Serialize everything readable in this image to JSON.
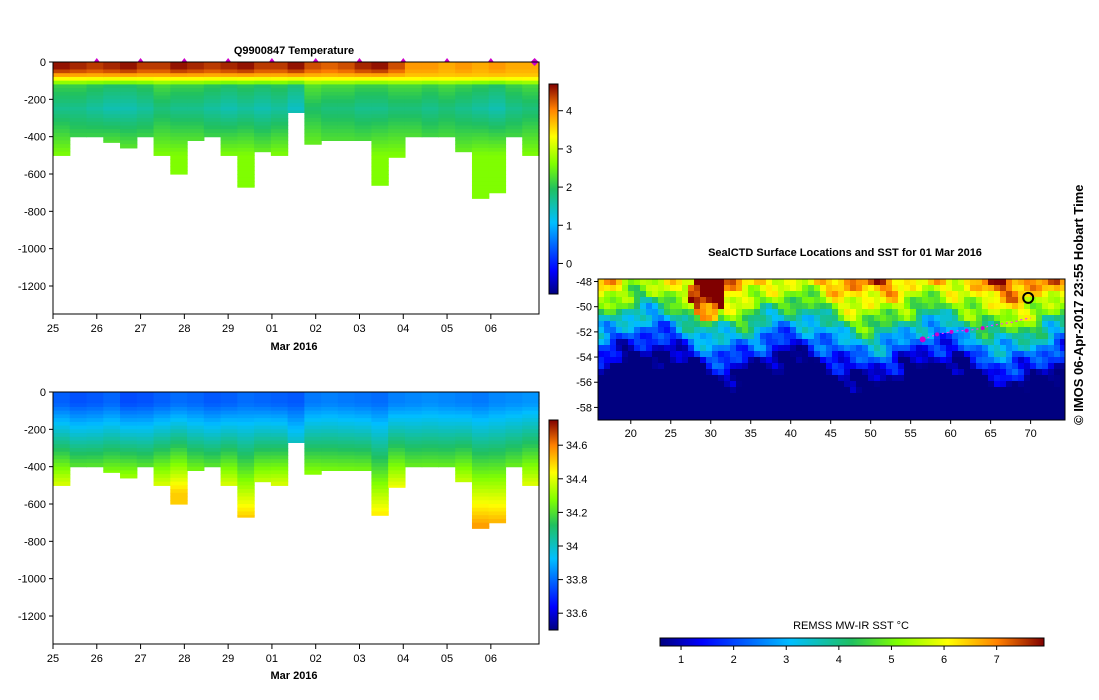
{
  "colors": {
    "profile_mark": "#cc00cc",
    "track": "#ff33ff",
    "ice": "#000000"
  },
  "chart_data": [
    {
      "type": "heatmap",
      "title": "Q9900847  Temperature",
      "xlabel": "Mar 2016",
      "x_ticks": [
        "25",
        "26",
        "27",
        "28",
        "29",
        "01",
        "02",
        "03",
        "04",
        "05",
        "06"
      ],
      "y_ticks": [
        "0",
        "-200",
        "-400",
        "-600",
        "-800",
        "-1000",
        "-1200"
      ],
      "ylim": [
        -1350,
        0
      ],
      "colorbar_ticks": [
        "4",
        "3",
        "2",
        "1",
        "0"
      ],
      "colorbar_range": [
        -0.8,
        4.7
      ],
      "profiles": {
        "max_depth_m": [
          500,
          400,
          400,
          430,
          460,
          400,
          500,
          600,
          420,
          400,
          500,
          670,
          480,
          500,
          270,
          440,
          420,
          420,
          420,
          660,
          510,
          400,
          400,
          400,
          480,
          730,
          700,
          400,
          500
        ],
        "surface_temp": [
          4.6,
          4.5,
          4.4,
          4.5,
          4.6,
          4.4,
          4.4,
          4.6,
          4.5,
          4.4,
          4.5,
          4.6,
          4.4,
          4.4,
          4.6,
          4.3,
          4.2,
          4.3,
          4.5,
          4.6,
          4.3,
          3.9,
          3.9,
          3.8,
          3.9,
          3.8,
          3.9,
          3.8,
          3.8
        ],
        "min_layer_temp": [
          1.7,
          1.7,
          1.6,
          1.5,
          1.5,
          1.6,
          1.8,
          1.7,
          1.7,
          1.6,
          1.5,
          1.6,
          1.5,
          1.6,
          1.4,
          1.9,
          1.8,
          1.8,
          1.7,
          1.7,
          1.8,
          1.8,
          1.7,
          1.8,
          1.7,
          1.6,
          1.5,
          1.7,
          1.8
        ],
        "deep_temp": [
          2.6,
          2.4,
          2.5,
          2.6,
          2.5,
          2.5,
          2.6,
          2.6,
          2.6,
          2.5,
          2.6,
          2.6,
          2.5,
          2.6,
          2.5,
          2.6,
          2.5,
          2.5,
          2.5,
          2.6,
          2.6,
          2.6,
          2.5,
          2.5,
          2.5,
          2.6,
          2.6,
          2.5,
          2.6
        ]
      },
      "surface_marker_days": [
        26,
        27,
        28,
        29,
        30,
        31,
        32,
        33,
        34,
        35,
        36
      ]
    },
    {
      "type": "heatmap",
      "title": "",
      "xlabel": "Mar 2016",
      "x_ticks": [
        "25",
        "26",
        "27",
        "28",
        "29",
        "01",
        "02",
        "03",
        "04",
        "05",
        "06"
      ],
      "y_ticks": [
        "0",
        "-200",
        "-400",
        "-600",
        "-800",
        "-1000",
        "-1200"
      ],
      "ylim": [
        -1350,
        0
      ],
      "colorbar_ticks": [
        "34.6",
        "34.4",
        "34.2",
        "34",
        "33.8",
        "33.6"
      ],
      "colorbar_range": [
        33.5,
        34.75
      ],
      "profiles": {
        "surface_sal": [
          33.78,
          33.76,
          33.77,
          33.79,
          33.75,
          33.76,
          33.78,
          33.8,
          33.79,
          33.77,
          33.78,
          33.8,
          33.79,
          33.78,
          33.77,
          33.82,
          33.83,
          33.82,
          33.81,
          33.8,
          33.83,
          33.84,
          33.85,
          33.84,
          33.83,
          33.82,
          33.84,
          33.85,
          33.86
        ],
        "bottom_sal": [
          34.45,
          34.4,
          34.4,
          34.42,
          34.43,
          34.4,
          34.45,
          34.5,
          34.42,
          34.4,
          34.45,
          34.55,
          34.44,
          34.45,
          34.3,
          34.42,
          34.41,
          34.41,
          34.41,
          34.52,
          34.46,
          34.4,
          34.4,
          34.4,
          34.44,
          34.56,
          34.55,
          34.4,
          34.45
        ]
      }
    },
    {
      "type": "map",
      "title": "SealCTD Surface Locations and SST for 01 Mar 2016",
      "x_ticks": [
        "20",
        "25",
        "30",
        "35",
        "40",
        "45",
        "50",
        "55",
        "60",
        "65",
        "70"
      ],
      "y_ticks": [
        "-48",
        "-50",
        "-52",
        "-54",
        "-56",
        "-58"
      ],
      "xlim": [
        15.9,
        74.3
      ],
      "ylim": [
        -59.0,
        -47.8
      ],
      "colorbar_label": "REMSS MW-IR SST °C",
      "colorbar_ticks": [
        "1",
        "2",
        "3",
        "4",
        "5",
        "6",
        "7"
      ],
      "colorbar_range": [
        0.6,
        7.9
      ],
      "track_lon": [
        56.5,
        57.4,
        58.3,
        59.2,
        60.1,
        61.0,
        62.0,
        63.0,
        64.0,
        65.0,
        66.0,
        67.0,
        68.0,
        69.0,
        70.0
      ],
      "track_lat": [
        -52.6,
        -52.4,
        -52.2,
        -52.1,
        -52.0,
        -51.9,
        -51.9,
        -51.8,
        -51.7,
        -51.5,
        -51.4,
        -51.3,
        -51.2,
        -51.0,
        -50.9
      ],
      "surface_lon": [
        56.5,
        58.3,
        60.1,
        62.0,
        64.0
      ],
      "surface_lat": [
        -52.6,
        -52.2,
        -52.0,
        -51.9,
        -51.7
      ],
      "landmark_lon": 69.7,
      "landmark_lat": -49.3
    }
  ],
  "credit": "© IMOS 06-Apr-2017 23:55 Hobart Time"
}
